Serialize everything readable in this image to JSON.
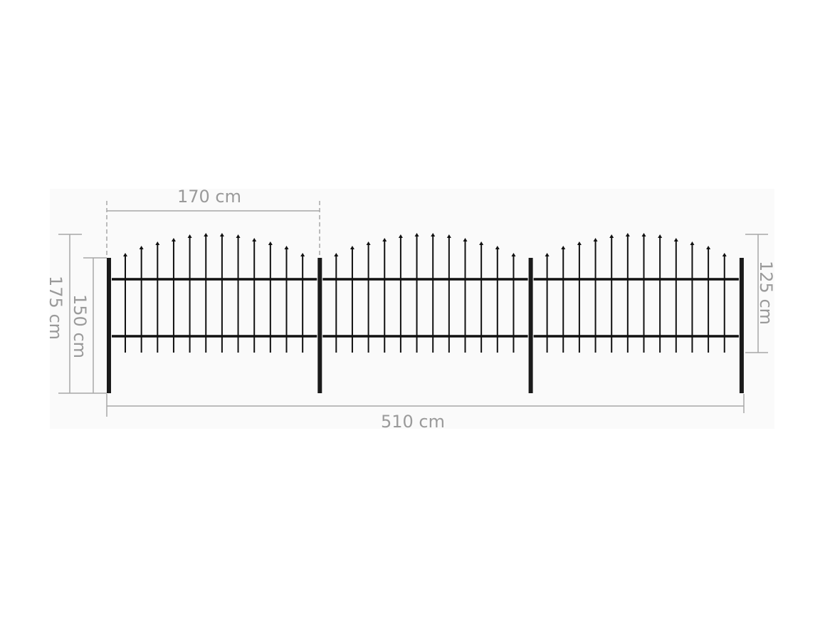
{
  "colors": {
    "fence": "#111111",
    "dimension": "#a8a8a8",
    "dimension_text": "#9a9a9a",
    "panel_bg": "#fafafa"
  },
  "dimensions": {
    "panel_width": "170 cm",
    "total_length": "510 cm",
    "total_height": "175 cm",
    "post_height": "150 cm",
    "fence_height": "125 cm"
  },
  "fence": {
    "panels": 3,
    "pickets_per_panel": 12,
    "posts": 4,
    "rails_per_panel": 2
  }
}
